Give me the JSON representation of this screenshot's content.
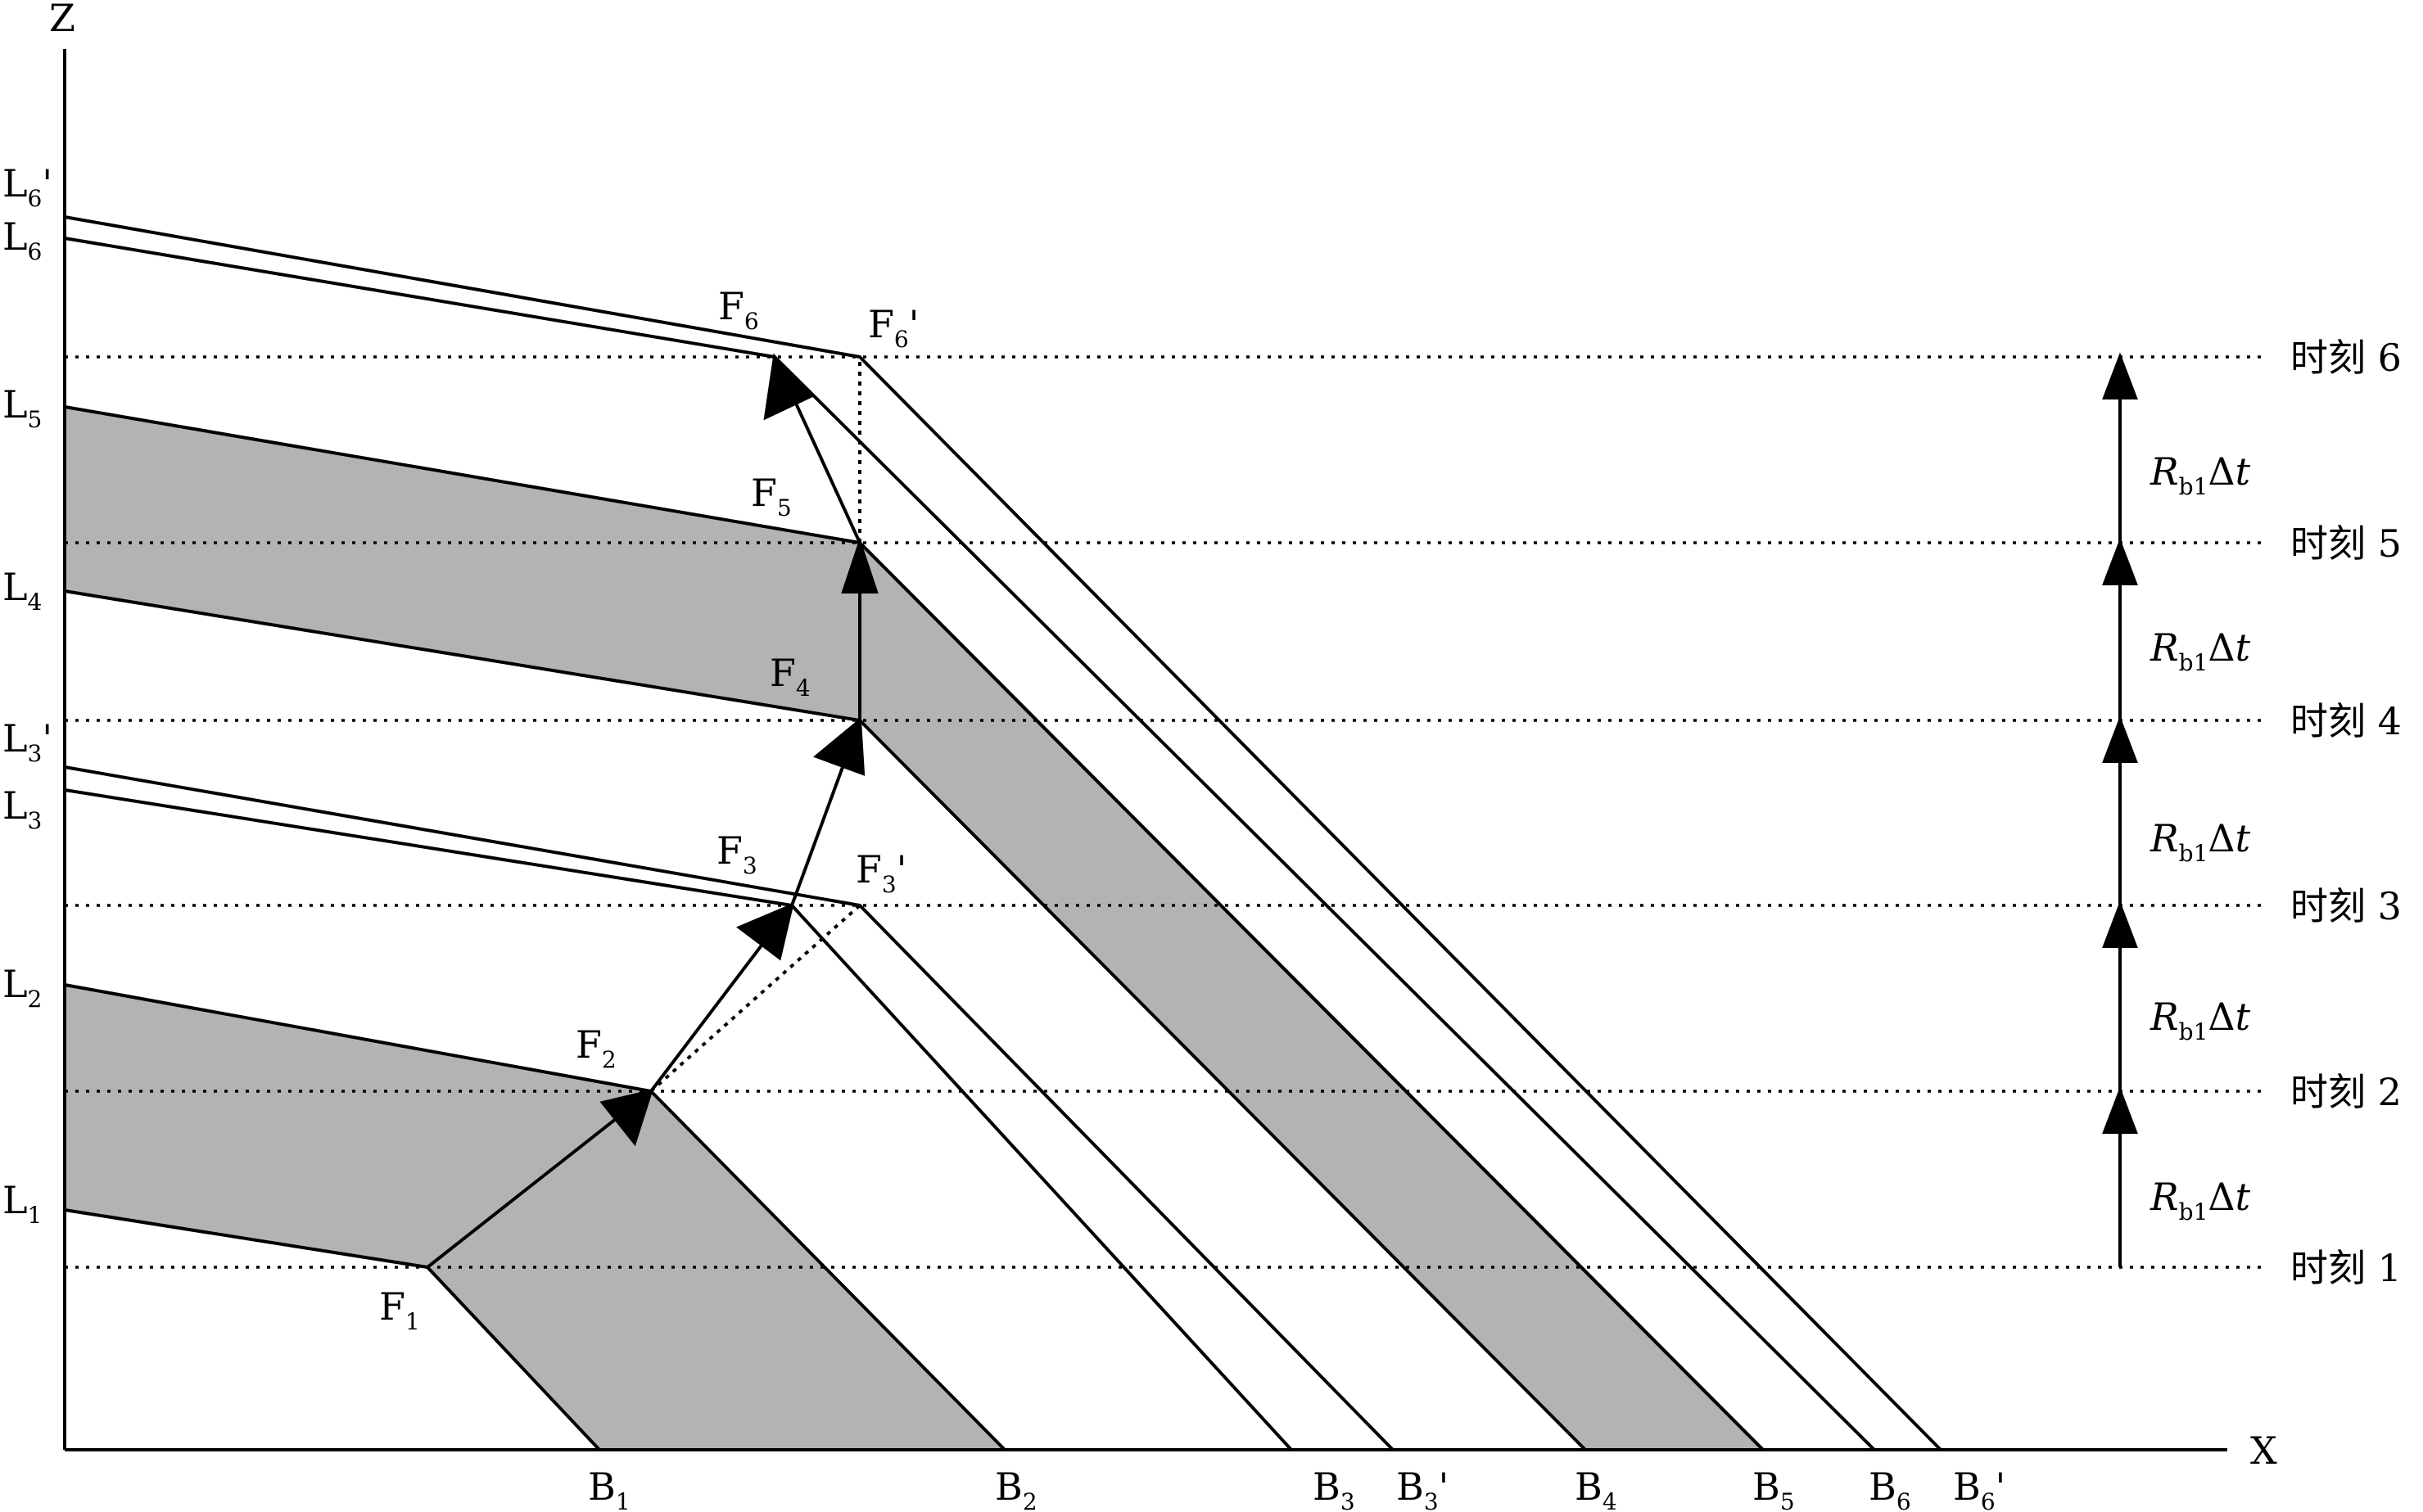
{
  "axes": {
    "x_label": "X",
    "z_label": "Z"
  },
  "left_labels": [
    {
      "base": "L",
      "sub": "6",
      "prime": "'"
    },
    {
      "base": "L",
      "sub": "6",
      "prime": ""
    },
    {
      "base": "L",
      "sub": "5",
      "prime": ""
    },
    {
      "base": "L",
      "sub": "4",
      "prime": ""
    },
    {
      "base": "L",
      "sub": "3",
      "prime": "'"
    },
    {
      "base": "L",
      "sub": "3",
      "prime": ""
    },
    {
      "base": "L",
      "sub": "2",
      "prime": ""
    },
    {
      "base": "L",
      "sub": "1",
      "prime": ""
    }
  ],
  "bottom_labels": [
    {
      "base": "B",
      "sub": "1",
      "prime": ""
    },
    {
      "base": "B",
      "sub": "2",
      "prime": ""
    },
    {
      "base": "B",
      "sub": "3",
      "prime": ""
    },
    {
      "base": "B",
      "sub": "3",
      "prime": "'"
    },
    {
      "base": "B",
      "sub": "4",
      "prime": ""
    },
    {
      "base": "B",
      "sub": "5",
      "prime": ""
    },
    {
      "base": "B",
      "sub": "6",
      "prime": ""
    },
    {
      "base": "B",
      "sub": "6",
      "prime": "'"
    }
  ],
  "point_labels": [
    {
      "base": "F",
      "sub": "1",
      "prime": ""
    },
    {
      "base": "F",
      "sub": "2",
      "prime": ""
    },
    {
      "base": "F",
      "sub": "3",
      "prime": ""
    },
    {
      "base": "F",
      "sub": "3",
      "prime": "'"
    },
    {
      "base": "F",
      "sub": "4",
      "prime": ""
    },
    {
      "base": "F",
      "sub": "5",
      "prime": ""
    },
    {
      "base": "F",
      "sub": "6",
      "prime": ""
    },
    {
      "base": "F",
      "sub": "6",
      "prime": "'"
    }
  ],
  "time_labels": [
    "时刻 1",
    "时刻 2",
    "时刻 3",
    "时刻 4",
    "时刻 5",
    "时刻 6"
  ],
  "rate_label": {
    "base": "R",
    "sub": "b1",
    "delta": "Δ",
    "t": "t"
  },
  "colors": {
    "fill": "#b3b3b3",
    "line": "#000000",
    "background": "#ffffff"
  }
}
